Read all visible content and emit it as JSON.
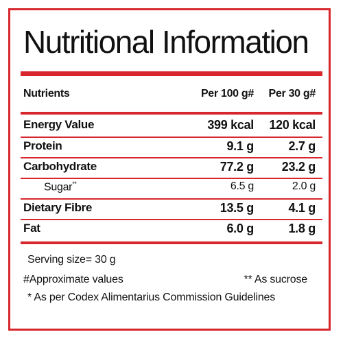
{
  "title": "Nutritional Information",
  "header": {
    "nutrients": "Nutrients",
    "per100": "Per 100 g#",
    "per30": "Per 30 g#"
  },
  "rows": [
    {
      "name": "Energy Value",
      "mark": "",
      "per100": "399 kcal",
      "per30": "120 kcal"
    },
    {
      "name": "Protein",
      "mark": "",
      "per100": "9.1 g",
      "per30": "2.7 g"
    },
    {
      "name": "Carbohydrate",
      "mark": "",
      "per100": "77.2 g",
      "per30": "23.2 g"
    },
    {
      "name": "Sugar",
      "mark": "**",
      "per100": "6.5 g",
      "per30": "2.0 g"
    },
    {
      "name": "Dietary Fibre",
      "mark": "",
      "per100": "13.5 g",
      "per30": "4.1 g"
    },
    {
      "name": "Fat",
      "mark": "",
      "per100": "6.0 g",
      "per30": "1.8 g"
    }
  ],
  "footer": {
    "serving": "Serving size= 30 g",
    "approx": "#Approximate values",
    "sucrose": "** As sucrose",
    "codex": "* As per Codex Alimentarius Commission Guidelines"
  },
  "colors": {
    "accent": "#d7262c",
    "text": "#111111"
  }
}
